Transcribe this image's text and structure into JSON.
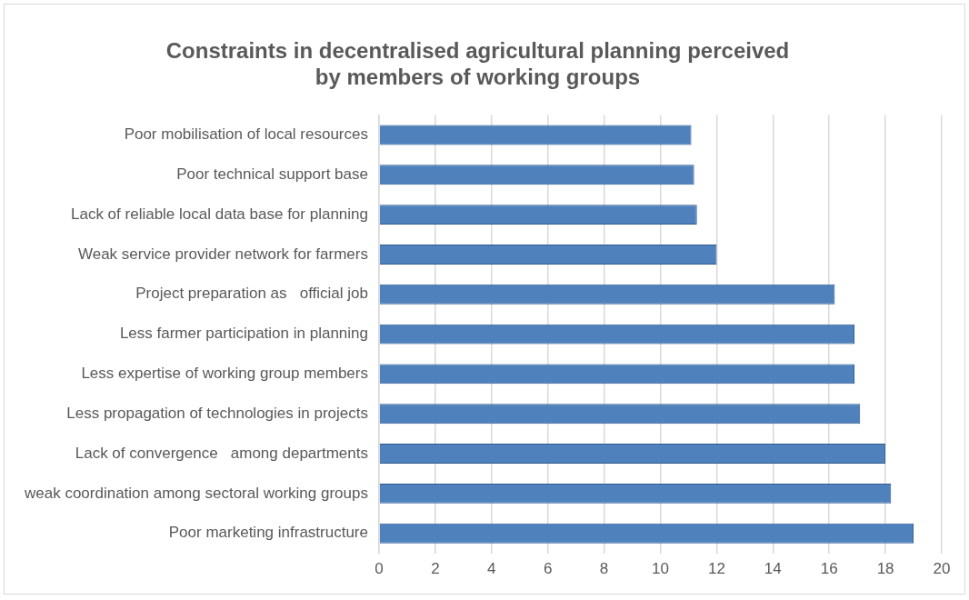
{
  "chart_data": {
    "type": "bar",
    "orientation": "horizontal",
    "title": "Constraints in decentralised agricultural planning perceived by members of working groups",
    "categories": [
      "Poor mobilisation of local resources",
      "Poor technical support base",
      "Lack of reliable local data base for planning",
      "Weak service provider network for farmers",
      "Project preparation as   official job",
      "Less farmer participation in planning",
      "Less expertise of working group members",
      "Less propagation of technologies in projects",
      "Lack of convergence   among departments",
      "weak coordination among sectoral working groups",
      "Poor marketing infrastructure"
    ],
    "values": [
      11.1,
      11.2,
      11.3,
      12.0,
      16.2,
      16.9,
      16.9,
      17.1,
      18.0,
      18.2,
      19.0
    ],
    "color": "#4f81bd",
    "xlim": [
      0,
      20
    ],
    "xticks": [
      0,
      2,
      4,
      6,
      8,
      10,
      12,
      14,
      16,
      18,
      20
    ],
    "grid": "x",
    "legend": false
  }
}
